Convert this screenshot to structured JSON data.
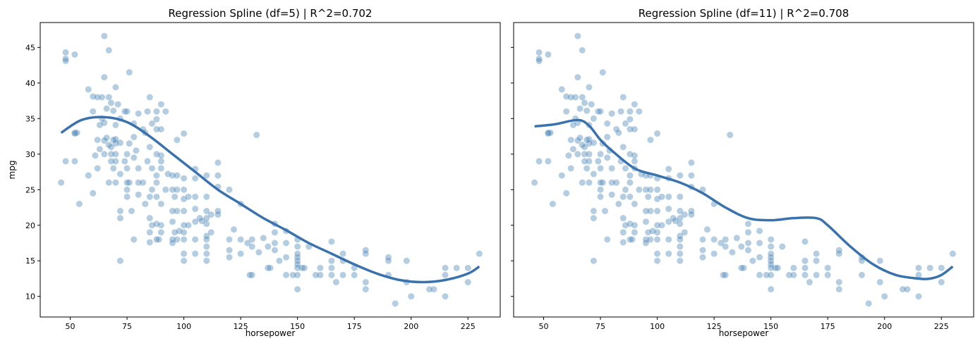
{
  "chart_data": [
    {
      "type": "scatter",
      "title": "Regression Spline (df=5)  |  R^2=0.702",
      "xlabel": "horsepower",
      "ylabel": "mpg",
      "xlim": [
        36.8,
        239.2
      ],
      "ylim": [
        7.1,
        48.5
      ],
      "xticks": [
        50,
        75,
        100,
        125,
        150,
        175,
        200,
        225
      ],
      "yticks": [
        10,
        15,
        20,
        25,
        30,
        35,
        40,
        45
      ],
      "point_color": "#4682b4",
      "line_color": "#3a72ad",
      "fit_line": {
        "x": [
          46,
          55,
          65,
          75,
          85,
          95,
          105,
          115,
          125,
          135,
          145,
          155,
          165,
          175,
          185,
          195,
          205,
          215,
          225,
          230
        ],
        "y": [
          33,
          34.8,
          35.2,
          34.5,
          32.5,
          30,
          27.5,
          25,
          23,
          21,
          19.3,
          17.5,
          16,
          14.5,
          13.2,
          12.3,
          12,
          12.3,
          13.2,
          14.2
        ]
      }
    },
    {
      "type": "scatter",
      "title": "Regression Spline (df=11) |  R^2=0.708",
      "xlabel": "horsepower",
      "ylabel": "",
      "xlim": [
        36.8,
        239.2
      ],
      "ylim": [
        7.1,
        48.5
      ],
      "xticks": [
        50,
        75,
        100,
        125,
        150,
        175,
        200,
        225
      ],
      "yticks": [
        10,
        15,
        20,
        25,
        30,
        35,
        40,
        45
      ],
      "point_color": "#4682b4",
      "line_color": "#3a72ad",
      "fit_line": {
        "x": [
          46,
          55,
          65,
          70,
          75,
          80,
          90,
          100,
          110,
          120,
          130,
          140,
          150,
          160,
          170,
          175,
          185,
          195,
          205,
          215,
          220,
          225,
          230
        ],
        "y": [
          33.9,
          34.2,
          34.8,
          34,
          32,
          30.5,
          28,
          27,
          26,
          24.5,
          22.5,
          21,
          20.7,
          21,
          21,
          20,
          17,
          14.5,
          13,
          12.5,
          12.5,
          13,
          14.2
        ]
      }
    }
  ],
  "points": [
    [
      48,
      43.1
    ],
    [
      48,
      43.4
    ],
    [
      48,
      44.3
    ],
    [
      52,
      44
    ],
    [
      65,
      46.6
    ],
    [
      67,
      44.6
    ],
    [
      76,
      41.5
    ],
    [
      65,
      40.8
    ],
    [
      58,
      39.1
    ],
    [
      70,
      39.4
    ],
    [
      62,
      38
    ],
    [
      60,
      38.1
    ],
    [
      64,
      38
    ],
    [
      67,
      38
    ],
    [
      68,
      37.2
    ],
    [
      66,
      36.4
    ],
    [
      69,
      36.1
    ],
    [
      71,
      37
    ],
    [
      85,
      38
    ],
    [
      90,
      37
    ],
    [
      74,
      36
    ],
    [
      75,
      36
    ],
    [
      84,
      36
    ],
    [
      88,
      36
    ],
    [
      92,
      36
    ],
    [
      80,
      35.7
    ],
    [
      88,
      34.9
    ],
    [
      60,
      36
    ],
    [
      72,
      35
    ],
    [
      64,
      35
    ],
    [
      78,
      34.3
    ],
    [
      86,
      34.3
    ],
    [
      63,
      34.1
    ],
    [
      65,
      34.4
    ],
    [
      70,
      34.1
    ],
    [
      66,
      32.3
    ],
    [
      69,
      32
    ],
    [
      70,
      32.1
    ],
    [
      78,
      32.4
    ],
    [
      52,
      32.9
    ],
    [
      52,
      33
    ],
    [
      53,
      33
    ],
    [
      62,
      32
    ],
    [
      65,
      31.9
    ],
    [
      72,
      31.6
    ],
    [
      67,
      31.3
    ],
    [
      70,
      31.5
    ],
    [
      76,
      31.5
    ],
    [
      100,
      32.9
    ],
    [
      97,
      32
    ],
    [
      132,
      32.7
    ],
    [
      88,
      33.5
    ],
    [
      82,
      33.5
    ],
    [
      83,
      33
    ],
    [
      90,
      33.5
    ],
    [
      68,
      31
    ],
    [
      79,
      30.5
    ],
    [
      75,
      30
    ],
    [
      65,
      30
    ],
    [
      70,
      30
    ],
    [
      68,
      30
    ],
    [
      85,
      31
    ],
    [
      88,
      30
    ],
    [
      90,
      29.8
    ],
    [
      48,
      29
    ],
    [
      52,
      29
    ],
    [
      61,
      29.8
    ],
    [
      63,
      30.7
    ],
    [
      68,
      29
    ],
    [
      70,
      29
    ],
    [
      74,
      29
    ],
    [
      78,
      29.5
    ],
    [
      84,
      29
    ],
    [
      90,
      29
    ],
    [
      105,
      27.9
    ],
    [
      115,
      28.8
    ],
    [
      58,
      27
    ],
    [
      62,
      28
    ],
    [
      69,
      28
    ],
    [
      75,
      28
    ],
    [
      80,
      28
    ],
    [
      86,
      28
    ],
    [
      88,
      27
    ],
    [
      90,
      28
    ],
    [
      93,
      27.2
    ],
    [
      95,
      27
    ],
    [
      97,
      27
    ],
    [
      100,
      26.6
    ],
    [
      105,
      26.6
    ],
    [
      110,
      27
    ],
    [
      115,
      27
    ],
    [
      46,
      26
    ],
    [
      60,
      24.5
    ],
    [
      54,
      23
    ],
    [
      67,
      26
    ],
    [
      70,
      26
    ],
    [
      72,
      27.2
    ],
    [
      75,
      26
    ],
    [
      76,
      26
    ],
    [
      80,
      26
    ],
    [
      82,
      26
    ],
    [
      86,
      25
    ],
    [
      88,
      26
    ],
    [
      92,
      25
    ],
    [
      95,
      25
    ],
    [
      96,
      24
    ],
    [
      97,
      25
    ],
    [
      100,
      25
    ],
    [
      102,
      24
    ],
    [
      105,
      24
    ],
    [
      110,
      24
    ],
    [
      115,
      25.4
    ],
    [
      120,
      25
    ],
    [
      125,
      23
    ],
    [
      72,
      22
    ],
    [
      72,
      21
    ],
    [
      75,
      25
    ],
    [
      75,
      24
    ],
    [
      77,
      22
    ],
    [
      80,
      24.3
    ],
    [
      83,
      23
    ],
    [
      85,
      24
    ],
    [
      88,
      24
    ],
    [
      90,
      23
    ],
    [
      95,
      22
    ],
    [
      97,
      22
    ],
    [
      100,
      22
    ],
    [
      100,
      23.7
    ],
    [
      105,
      22.3
    ],
    [
      110,
      22
    ],
    [
      115,
      22
    ],
    [
      107,
      21
    ],
    [
      110,
      21
    ],
    [
      112,
      21.5
    ],
    [
      108,
      20.6
    ],
    [
      85,
      21
    ],
    [
      86,
      20
    ],
    [
      88,
      20.2
    ],
    [
      90,
      20
    ],
    [
      95,
      20.5
    ],
    [
      96,
      19
    ],
    [
      98,
      19.2
    ],
    [
      100,
      20
    ],
    [
      102,
      20
    ],
    [
      105,
      20.5
    ],
    [
      110,
      20.2
    ],
    [
      115,
      21.5
    ],
    [
      120,
      18
    ],
    [
      122,
      19.4
    ],
    [
      125,
      18
    ],
    [
      128,
      17.5
    ],
    [
      130,
      18
    ],
    [
      120,
      16.5
    ],
    [
      125,
      16
    ],
    [
      85,
      19
    ],
    [
      88,
      18
    ],
    [
      89,
      18
    ],
    [
      90,
      19
    ],
    [
      95,
      18
    ],
    [
      97,
      18
    ],
    [
      100,
      18
    ],
    [
      100,
      19
    ],
    [
      105,
      18
    ],
    [
      110,
      18
    ],
    [
      110,
      17
    ],
    [
      95,
      17.5
    ],
    [
      85,
      17.6
    ],
    [
      78,
      18
    ],
    [
      72,
      15
    ],
    [
      100,
      16
    ],
    [
      100,
      15
    ],
    [
      105,
      16
    ],
    [
      110,
      16
    ],
    [
      110,
      15
    ],
    [
      120,
      15.5
    ],
    [
      129,
      13
    ],
    [
      130,
      13
    ],
    [
      133,
      16.2
    ],
    [
      135,
      18.2
    ],
    [
      137,
      17
    ],
    [
      138,
      14
    ],
    [
      140,
      16.5
    ],
    [
      140,
      17.5
    ],
    [
      140,
      19
    ],
    [
      140,
      20.2
    ],
    [
      142,
      15
    ],
    [
      145,
      13
    ],
    [
      145,
      15.5
    ],
    [
      145,
      17.5
    ],
    [
      145,
      19.2
    ],
    [
      148,
      13
    ],
    [
      150,
      13
    ],
    [
      150,
      14
    ],
    [
      150,
      15
    ],
    [
      150,
      16
    ],
    [
      150,
      17
    ],
    [
      150,
      18
    ],
    [
      150,
      11
    ],
    [
      152,
      14
    ],
    [
      153,
      14
    ],
    [
      155,
      17
    ],
    [
      158,
      13
    ],
    [
      160,
      14
    ],
    [
      165,
      13
    ],
    [
      165,
      14
    ],
    [
      165,
      15
    ],
    [
      165,
      17.7
    ],
    [
      167,
      12
    ],
    [
      170,
      13
    ],
    [
      170,
      15
    ],
    [
      170,
      16
    ],
    [
      175,
      13
    ],
    [
      175,
      14
    ],
    [
      180,
      12
    ],
    [
      180,
      11
    ],
    [
      180,
      16
    ],
    [
      180,
      16.5
    ],
    [
      190,
      13
    ],
    [
      190,
      15
    ],
    [
      190,
      15.5
    ],
    [
      193,
      9
    ],
    [
      198,
      12
    ],
    [
      198,
      15
    ],
    [
      200,
      10
    ],
    [
      208,
      11
    ],
    [
      210,
      11
    ],
    [
      215,
      10
    ],
    [
      215,
      13
    ],
    [
      215,
      14
    ],
    [
      220,
      14
    ],
    [
      225,
      12
    ],
    [
      225,
      14
    ],
    [
      230,
      16
    ],
    [
      110,
      18.5
    ],
    [
      112,
      19
    ],
    [
      130,
      17
    ],
    [
      137,
      14
    ],
    [
      150,
      15.5
    ],
    [
      160,
      13
    ],
    [
      150,
      14.5
    ]
  ]
}
